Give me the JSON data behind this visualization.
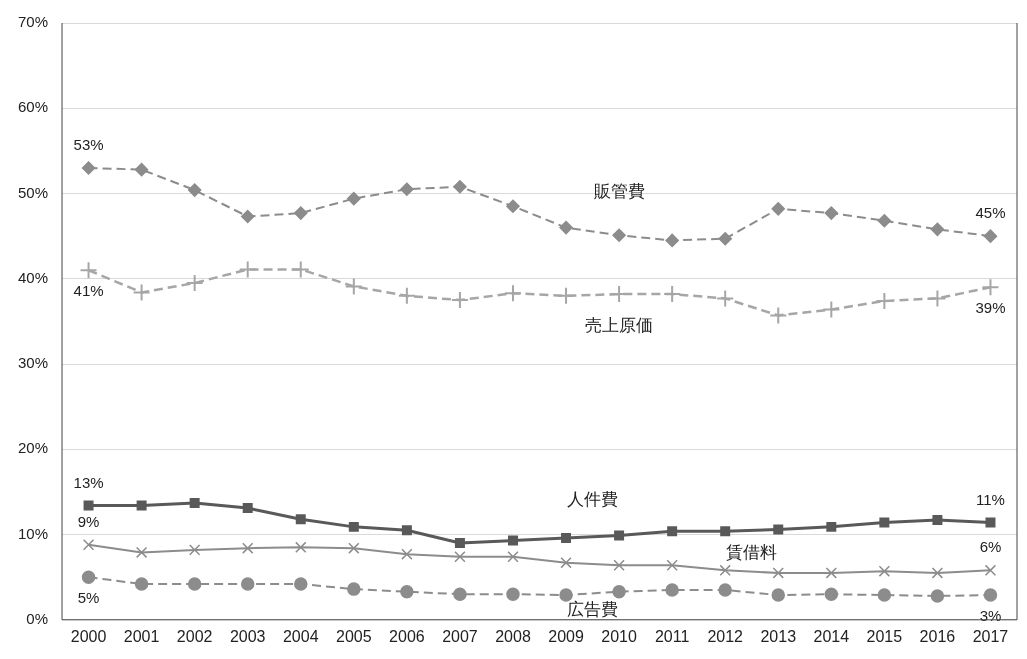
{
  "chart_data": {
    "type": "line",
    "categories": [
      "2000",
      "2001",
      "2002",
      "2003",
      "2004",
      "2005",
      "2006",
      "2007",
      "2008",
      "2009",
      "2010",
      "2011",
      "2012",
      "2013",
      "2014",
      "2015",
      "2016",
      "2017"
    ],
    "ylim": [
      0,
      70
    ],
    "yticks": [
      {
        "value": 0,
        "label": "0%"
      },
      {
        "value": 10,
        "label": "10%"
      },
      {
        "value": 20,
        "label": "20%"
      },
      {
        "value": 30,
        "label": "30%"
      },
      {
        "value": 40,
        "label": "40%"
      },
      {
        "value": 50,
        "label": "50%"
      },
      {
        "value": 60,
        "label": "60%"
      },
      {
        "value": 70,
        "label": "70%"
      }
    ],
    "grid": "y",
    "legend": false,
    "series": [
      {
        "name": "販管費",
        "color": "#8c8c8c",
        "marker": "diamond",
        "line_style": "dashed",
        "values": [
          53.0,
          52.8,
          50.4,
          47.3,
          47.7,
          49.4,
          50.5,
          50.8,
          48.5,
          46.0,
          45.1,
          44.5,
          44.7,
          48.2,
          47.7,
          46.8,
          45.8,
          45.0
        ],
        "value_labels": [
          "53%",
          null,
          null,
          null,
          null,
          null,
          null,
          null,
          null,
          null,
          null,
          null,
          null,
          null,
          null,
          null,
          null,
          "45%"
        ]
      },
      {
        "name": "売上原価",
        "color": "#a6a6a6",
        "marker": "cross",
        "line_style": "dashed",
        "values": [
          41.0,
          38.4,
          39.5,
          41.1,
          41.1,
          39.1,
          38.0,
          37.5,
          38.3,
          38.0,
          38.2,
          38.2,
          37.7,
          35.7,
          36.4,
          37.4,
          37.7,
          39.0
        ],
        "value_labels": [
          "41%",
          null,
          null,
          null,
          null,
          null,
          null,
          null,
          null,
          null,
          null,
          null,
          null,
          null,
          null,
          null,
          null,
          "39%"
        ]
      },
      {
        "name": "人件費",
        "color": "#595959",
        "marker": "square",
        "line_style": "solid",
        "values": [
          13.4,
          13.4,
          13.7,
          13.1,
          11.8,
          10.9,
          10.5,
          9.0,
          9.3,
          9.6,
          9.9,
          10.4,
          10.4,
          10.6,
          10.9,
          11.4,
          11.7,
          11.4
        ],
        "value_labels": [
          "13%",
          null,
          null,
          null,
          null,
          null,
          null,
          null,
          null,
          null,
          null,
          null,
          null,
          null,
          null,
          null,
          null,
          "11%"
        ]
      },
      {
        "name": "賃借料",
        "color": "#8c8c8c",
        "marker": "x",
        "line_style": "solid",
        "values": [
          8.8,
          7.9,
          8.2,
          8.4,
          8.5,
          8.4,
          7.7,
          7.4,
          7.4,
          6.7,
          6.4,
          6.4,
          5.8,
          5.5,
          5.5,
          5.7,
          5.5,
          5.8
        ],
        "value_labels": [
          "9%",
          null,
          null,
          null,
          null,
          null,
          null,
          null,
          null,
          null,
          null,
          null,
          null,
          null,
          null,
          null,
          null,
          "6%"
        ]
      },
      {
        "name": "広告費",
        "color": "#8c8c8c",
        "marker": "circle",
        "line_style": "dashed",
        "values": [
          5.0,
          4.2,
          4.2,
          4.2,
          4.2,
          3.6,
          3.3,
          3.0,
          3.0,
          2.9,
          3.3,
          3.5,
          3.5,
          2.9,
          3.0,
          2.9,
          2.8,
          2.9
        ],
        "value_labels": [
          "5%",
          null,
          null,
          null,
          null,
          null,
          null,
          null,
          null,
          null,
          null,
          null,
          null,
          null,
          null,
          null,
          null,
          "3%"
        ]
      }
    ]
  }
}
